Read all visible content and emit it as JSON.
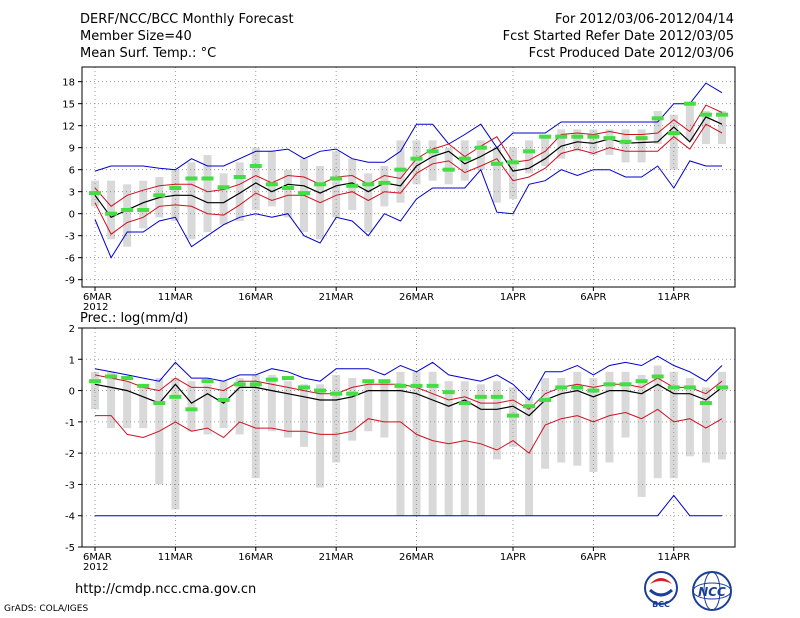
{
  "header": {
    "title": "DERF/NCC/BCC Monthly Forecast",
    "member_size": "Member Size=40",
    "variable": "Mean Surf. Temp.: °C",
    "period": "For 2012/03/06-2012/04/14",
    "refer_date": "Fcst Started Refer Date 2012/03/05",
    "produced_date": "Fcst Produced Date 2012/03/06"
  },
  "footer": {
    "url": "http://cmdp.ncc.cma.gov.cn",
    "grads_credit": "GrADS: COLA/IGES",
    "logo_left_text": "BCC",
    "logo_right_text": "NCC"
  },
  "colors": {
    "ensemble_mean": "#000000",
    "spread": "#d01020",
    "extreme": "#0000cc",
    "observed_mark": "#44dd44",
    "range_box": "#d9d9d9"
  },
  "chart_data": [
    {
      "type": "line",
      "title": "Mean Surf. Temp.: °C",
      "x": [
        "6MAR",
        "7MAR",
        "8MAR",
        "9MAR",
        "10MAR",
        "11MAR",
        "12MAR",
        "13MAR",
        "14MAR",
        "15MAR",
        "16MAR",
        "17MAR",
        "18MAR",
        "19MAR",
        "20MAR",
        "21MAR",
        "22MAR",
        "23MAR",
        "24MAR",
        "25MAR",
        "26MAR",
        "27MAR",
        "28MAR",
        "29MAR",
        "30MAR",
        "31MAR",
        "1APR",
        "2APR",
        "3APR",
        "4APR",
        "5APR",
        "6APR",
        "7APR",
        "8APR",
        "9APR",
        "10APR",
        "11APR",
        "12APR",
        "13APR",
        "14APR"
      ],
      "xtick_labels": [
        "6MAR\n2012",
        "11MAR",
        "16MAR",
        "21MAR",
        "26MAR",
        "1APR",
        "6APR",
        "11APR"
      ],
      "ylim": [
        -10,
        20
      ],
      "yticks": [
        -9,
        -6,
        -3,
        0,
        3,
        6,
        9,
        12,
        15,
        18
      ],
      "series": [
        {
          "name": "ensemble mean",
          "values": [
            2.5,
            -0.5,
            0.5,
            1.5,
            2.2,
            2.5,
            2.5,
            1.5,
            1.5,
            2.8,
            4.2,
            3.0,
            4.0,
            3.8,
            2.8,
            3.8,
            4.2,
            3.0,
            4.2,
            3.8,
            6.5,
            7.8,
            8.5,
            6.8,
            7.8,
            9.0,
            5.8,
            6.2,
            7.5,
            9.2,
            9.8,
            9.6,
            10.2,
            9.6,
            9.7,
            9.8,
            11.8,
            9.8,
            13.2,
            12.2
          ]
        },
        {
          "name": "upper spread",
          "values": [
            3.5,
            1.0,
            2.5,
            3.2,
            3.8,
            4.0,
            4.0,
            3.0,
            3.3,
            4.0,
            5.2,
            4.2,
            5.2,
            5.0,
            4.0,
            5.0,
            5.2,
            4.0,
            5.2,
            4.8,
            7.5,
            8.8,
            9.5,
            7.8,
            9.2,
            10.5,
            7.0,
            7.3,
            8.5,
            10.8,
            11.0,
            10.8,
            11.2,
            10.8,
            10.8,
            11.0,
            12.8,
            11.2,
            14.8,
            13.8
          ]
        },
        {
          "name": "lower spread",
          "values": [
            1.5,
            -2.8,
            -1.2,
            -0.5,
            1.0,
            1.2,
            1.0,
            0.0,
            -0.2,
            1.2,
            2.8,
            1.8,
            2.5,
            2.5,
            1.5,
            2.5,
            3.0,
            1.8,
            3.0,
            2.8,
            5.5,
            6.8,
            7.2,
            5.6,
            6.5,
            7.5,
            4.5,
            5.0,
            6.2,
            8.2,
            8.8,
            8.2,
            9.0,
            8.5,
            8.5,
            8.5,
            10.5,
            8.8,
            12.2,
            11.0
          ]
        },
        {
          "name": "max",
          "values": [
            5.8,
            6.5,
            6.5,
            6.5,
            6.2,
            6.0,
            7.5,
            6.5,
            6.5,
            7.5,
            8.5,
            8.5,
            8.8,
            7.5,
            8.5,
            8.8,
            7.5,
            7.0,
            7.0,
            8.5,
            12.2,
            12.2,
            9.5,
            10.8,
            12.2,
            9.0,
            11.0,
            11.0,
            11.0,
            12.5,
            12.5,
            12.5,
            12.5,
            12.5,
            12.5,
            12.5,
            15.0,
            15.0,
            17.8,
            16.5
          ]
        },
        {
          "name": "min",
          "values": [
            -0.8,
            -6.0,
            -2.5,
            -2.5,
            -1.0,
            -0.5,
            -4.5,
            -3.0,
            -1.5,
            -0.5,
            0.0,
            -0.5,
            0.0,
            -3.0,
            -4.0,
            -0.5,
            -1.0,
            -3.0,
            0.0,
            -1.0,
            2.0,
            3.5,
            3.5,
            3.5,
            6.0,
            0.2,
            0.0,
            4.0,
            4.5,
            6.0,
            5.2,
            6.0,
            6.0,
            5.0,
            5.0,
            6.5,
            3.5,
            7.2,
            6.5,
            6.5
          ]
        },
        {
          "name": "observed",
          "values": [
            2.8,
            0.0,
            0.5,
            0.5,
            2.5,
            3.5,
            4.8,
            4.8,
            3.6,
            5.0,
            6.5,
            4.0,
            3.5,
            2.8,
            4.0,
            4.8,
            3.8,
            4.0,
            4.2,
            6.0,
            7.5,
            8.5,
            6.0,
            7.5,
            9.0,
            6.8,
            7.0,
            8.5,
            10.5,
            10.5,
            10.5,
            10.5,
            10.3,
            9.8,
            10.3,
            13.0,
            11.0,
            15.0,
            13.5,
            13.5
          ]
        },
        {
          "name": "box high",
          "values": [
            4.5,
            4.5,
            4.0,
            4.5,
            5.0,
            6.0,
            7.0,
            8.0,
            5.5,
            7.0,
            9.0,
            8.5,
            6.0,
            7.5,
            6.5,
            8.5,
            7.5,
            5.5,
            6.5,
            10.0,
            10.0,
            10.0,
            9.0,
            10.0,
            10.0,
            9.0,
            9.0,
            10.0,
            10.5,
            11.5,
            11.5,
            11.5,
            11.5,
            11.5,
            11.5,
            14.0,
            13.5,
            15.0,
            14.0,
            14.0
          ]
        },
        {
          "name": "box low",
          "values": [
            1.0,
            -3.5,
            -4.5,
            -2.0,
            -0.5,
            -1.0,
            -3.5,
            -2.5,
            -1.5,
            -1.0,
            0.5,
            1.0,
            -0.5,
            -2.5,
            -3.5,
            -0.5,
            0.5,
            -2.5,
            1.0,
            1.5,
            4.0,
            4.5,
            4.0,
            4.5,
            6.0,
            1.5,
            2.0,
            5.5,
            6.5,
            7.5,
            8.5,
            8.0,
            8.0,
            7.0,
            7.0,
            9.5,
            6.0,
            10.0,
            9.5,
            9.5
          ]
        }
      ]
    },
    {
      "type": "line",
      "title": "Prec.: log(mm/d)",
      "ylim": [
        -5,
        2
      ],
      "yticks": [
        -5,
        -4,
        -3,
        -2,
        -1,
        0,
        1,
        2
      ],
      "series": [
        {
          "name": "ensemble mean",
          "values": [
            0.2,
            0.1,
            0.0,
            -0.2,
            -0.4,
            0.2,
            -0.4,
            -0.1,
            -0.4,
            0.1,
            0.1,
            0.0,
            -0.1,
            -0.2,
            -0.3,
            -0.3,
            -0.2,
            0.0,
            0.0,
            0.0,
            -0.1,
            -0.3,
            -0.5,
            -0.3,
            -0.6,
            -0.6,
            -0.5,
            -0.8,
            -0.3,
            -0.1,
            0.0,
            -0.2,
            0.0,
            0.0,
            -0.1,
            0.2,
            -0.1,
            -0.1,
            -0.3,
            0.1
          ]
        },
        {
          "name": "upper spread",
          "values": [
            0.5,
            0.4,
            0.3,
            0.1,
            0.0,
            0.4,
            0.1,
            0.1,
            0.0,
            0.3,
            0.3,
            0.2,
            0.1,
            0.0,
            -0.1,
            -0.1,
            0.1,
            0.2,
            0.2,
            0.2,
            0.1,
            -0.1,
            -0.3,
            -0.2,
            -0.4,
            -0.4,
            -0.3,
            -0.6,
            -0.1,
            0.1,
            0.2,
            0.1,
            0.2,
            0.2,
            0.1,
            0.4,
            0.1,
            0.1,
            -0.1,
            0.3
          ]
        },
        {
          "name": "lower spread",
          "values": [
            -0.8,
            -0.8,
            -1.4,
            -1.5,
            -1.3,
            -1.0,
            -1.3,
            -1.2,
            -1.5,
            -1.0,
            -1.2,
            -1.2,
            -1.3,
            -1.3,
            -1.4,
            -1.4,
            -1.3,
            -0.9,
            -1.0,
            -1.0,
            -1.4,
            -1.6,
            -1.7,
            -1.6,
            -1.7,
            -1.9,
            -1.6,
            -2.0,
            -1.1,
            -0.9,
            -0.8,
            -1.0,
            -0.8,
            -0.7,
            -0.9,
            -0.6,
            -1.0,
            -0.9,
            -1.2,
            -0.9
          ]
        },
        {
          "name": "max",
          "values": [
            0.7,
            0.6,
            0.5,
            0.4,
            0.3,
            0.9,
            0.4,
            0.4,
            0.3,
            0.5,
            0.5,
            0.7,
            0.6,
            0.4,
            0.3,
            0.7,
            0.7,
            0.7,
            0.5,
            0.8,
            0.6,
            0.9,
            0.5,
            0.4,
            0.3,
            0.5,
            0.2,
            -0.3,
            0.6,
            0.6,
            0.8,
            0.5,
            0.8,
            0.9,
            0.8,
            1.1,
            0.8,
            0.6,
            0.3,
            0.8
          ]
        },
        {
          "name": "min",
          "values": [
            -4,
            -4,
            -4,
            -4,
            -4,
            -4,
            -4,
            -4,
            -4,
            -4,
            -4,
            -4,
            -4,
            -4,
            -4,
            -4,
            -4,
            -4,
            -4,
            -4,
            -4,
            -4,
            -4,
            -4,
            -4,
            -4,
            -4,
            -4,
            -4,
            -4,
            -4,
            -4,
            -4,
            -4,
            -4,
            -4,
            -3.35,
            -4,
            -4,
            -4
          ]
        },
        {
          "name": "observed",
          "values": [
            0.3,
            0.45,
            0.4,
            0.15,
            -0.4,
            -0.2,
            -0.6,
            0.3,
            -0.3,
            0.2,
            0.2,
            0.35,
            0.4,
            0.1,
            0.0,
            -0.1,
            -0.1,
            0.3,
            0.3,
            0.15,
            0.15,
            0.15,
            -0.05,
            -0.4,
            -0.2,
            -0.2,
            -0.8,
            -0.5,
            -0.3,
            0.1,
            0.1,
            0.0,
            0.2,
            0.2,
            0.3,
            0.45,
            0.1,
            0.1,
            -0.4,
            0.1
          ]
        },
        {
          "name": "box high",
          "values": [
            0.6,
            0.6,
            0.3,
            0.2,
            0.4,
            0.4,
            0.3,
            0.2,
            0.3,
            0.4,
            0.5,
            0.5,
            0.3,
            0.2,
            0.2,
            0.5,
            0.4,
            0.3,
            0.3,
            0.6,
            0.6,
            0.6,
            0.3,
            0.3,
            0.2,
            0.3,
            0.1,
            -0.2,
            0.4,
            0.4,
            0.6,
            0.4,
            0.6,
            0.6,
            0.5,
            0.8,
            0.6,
            0.4,
            0.1,
            0.6
          ]
        },
        {
          "name": "box low",
          "values": [
            -0.6,
            -1.2,
            -1.2,
            -1.2,
            -3.0,
            -3.8,
            -1.3,
            -1.4,
            -1.2,
            -1.4,
            -2.8,
            -1.3,
            -1.5,
            -1.8,
            -3.1,
            -2.3,
            -1.6,
            -1.3,
            -1.5,
            -4.0,
            -4.0,
            -4.0,
            -4.0,
            -4.0,
            -4.0,
            -2.2,
            -1.8,
            -4.0,
            -2.5,
            -2.3,
            -2.4,
            -2.6,
            -2.3,
            -1.5,
            -3.4,
            -2.8,
            -2.8,
            -2.1,
            -2.3,
            -2.2
          ]
        }
      ]
    }
  ]
}
